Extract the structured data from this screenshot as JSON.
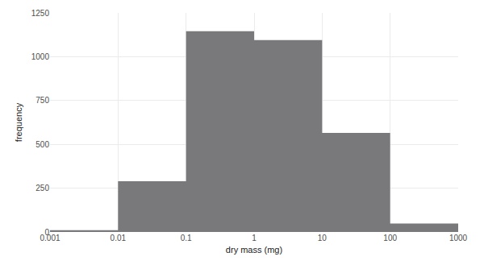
{
  "chart_data": {
    "type": "histogram",
    "xlabel": "dry mass (mg)",
    "ylabel": "frequency",
    "bins": [
      0.001,
      0.01,
      0.1,
      1,
      10,
      100,
      1000
    ],
    "values": [
      10,
      290,
      1145,
      1095,
      565,
      48
    ],
    "color": "#79797b",
    "log": "x",
    "xlim": [
      0.001,
      1000
    ],
    "xticks": [
      0.001,
      0.01,
      0.1,
      1,
      10,
      100,
      1000
    ],
    "ylim": [
      0,
      1250
    ],
    "yticks": [
      0,
      250,
      500,
      750,
      1000,
      1250
    ],
    "grid": true
  }
}
